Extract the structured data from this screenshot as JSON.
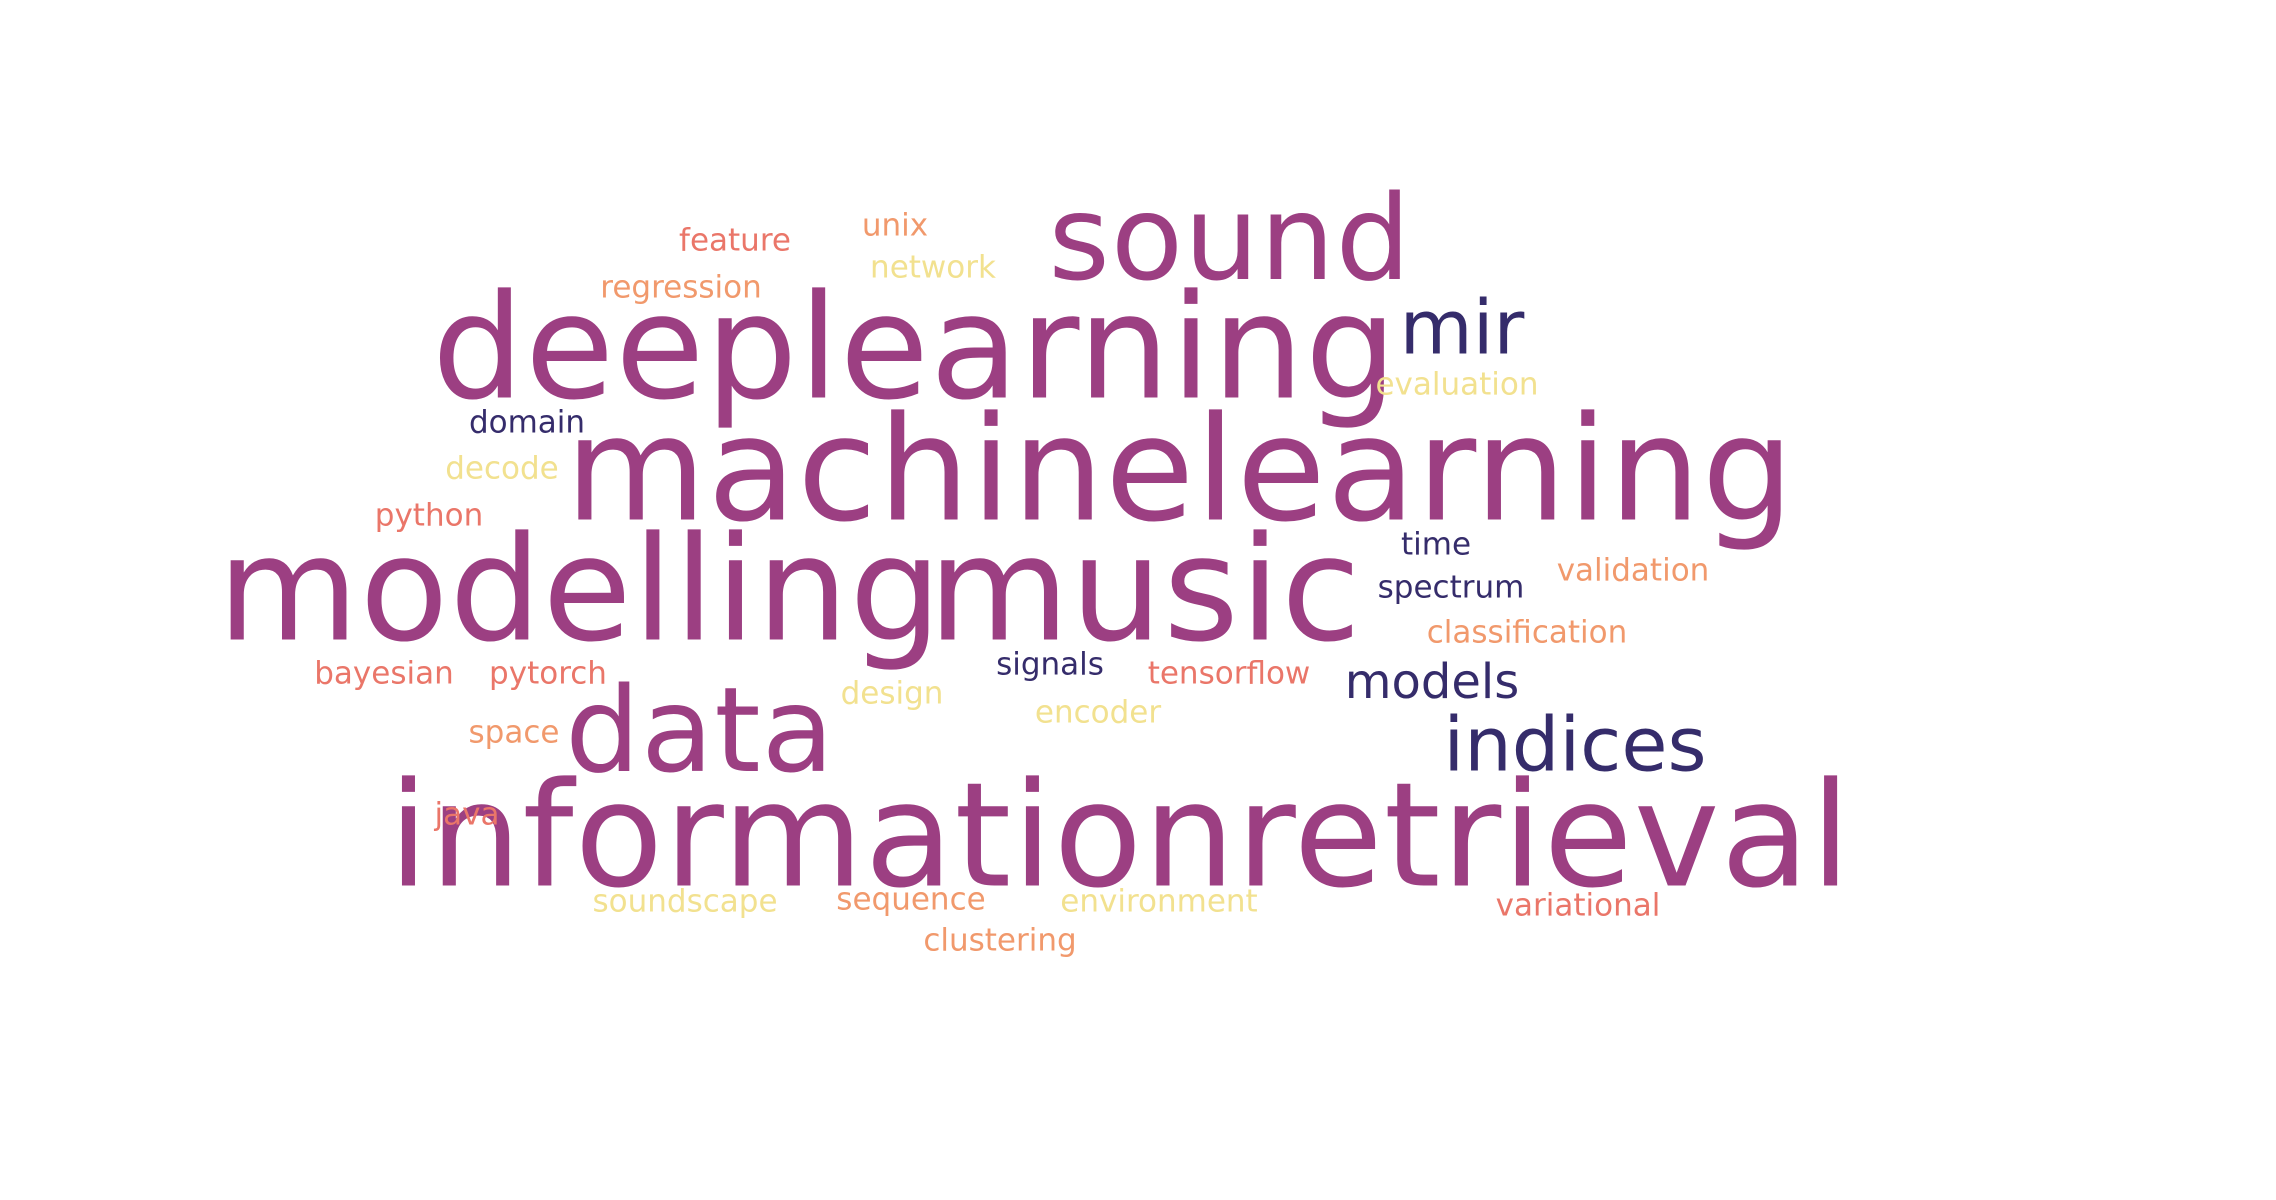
{
  "words": {
    "machinelearning": {
      "text": "machinelearning",
      "color": "#9c3f82"
    },
    "informationretrieval": {
      "text": "informationretrieval",
      "color": "#9c3f82"
    },
    "modelling": {
      "text": "modelling",
      "color": "#9c3f82"
    },
    "deeplearning": {
      "text": "deeplearning",
      "color": "#9c3f82"
    },
    "music": {
      "text": "music",
      "color": "#9c3f82"
    },
    "sound": {
      "text": "sound",
      "color": "#9c3f82"
    },
    "data": {
      "text": "data",
      "color": "#9c3f82"
    },
    "mir": {
      "text": "mir",
      "color": "#352c6b"
    },
    "indices": {
      "text": "indices",
      "color": "#352c6b"
    },
    "models": {
      "text": "models",
      "color": "#352c6b"
    },
    "feature": {
      "text": "feature",
      "color": "#ea7669"
    },
    "unix": {
      "text": "unix",
      "color": "#f1996c"
    },
    "network": {
      "text": "network",
      "color": "#f2e18f"
    },
    "regression": {
      "text": "regression",
      "color": "#f1996c"
    },
    "evaluation": {
      "text": "evaluation",
      "color": "#f2e18f"
    },
    "domain": {
      "text": "domain",
      "color": "#352c6b"
    },
    "decode": {
      "text": "decode",
      "color": "#f2e18f"
    },
    "python": {
      "text": "python",
      "color": "#ea7669"
    },
    "time": {
      "text": "time",
      "color": "#352c6b"
    },
    "validation": {
      "text": "validation",
      "color": "#f1996c"
    },
    "spectrum": {
      "text": "spectrum",
      "color": "#352c6b"
    },
    "classification": {
      "text": "classification",
      "color": "#f1996c"
    },
    "bayesian": {
      "text": "bayesian",
      "color": "#ea7669"
    },
    "pytorch": {
      "text": "pytorch",
      "color": "#ea7669"
    },
    "signals": {
      "text": "signals",
      "color": "#352c6b"
    },
    "tensorflow": {
      "text": "tensorflow",
      "color": "#ea7669"
    },
    "design": {
      "text": "design",
      "color": "#f2e18f"
    },
    "encoder": {
      "text": "encoder",
      "color": "#f2e18f"
    },
    "space": {
      "text": "space",
      "color": "#f1996c"
    },
    "java": {
      "text": "java",
      "color": "#ea7669"
    },
    "soundscape": {
      "text": "soundscape",
      "color": "#f2e18f"
    },
    "sequence": {
      "text": "sequence",
      "color": "#f1996c"
    },
    "environment": {
      "text": "environment",
      "color": "#f2e18f"
    },
    "variational": {
      "text": "variational",
      "color": "#ea7669"
    },
    "clustering": {
      "text": "clustering",
      "color": "#f1996c"
    }
  }
}
